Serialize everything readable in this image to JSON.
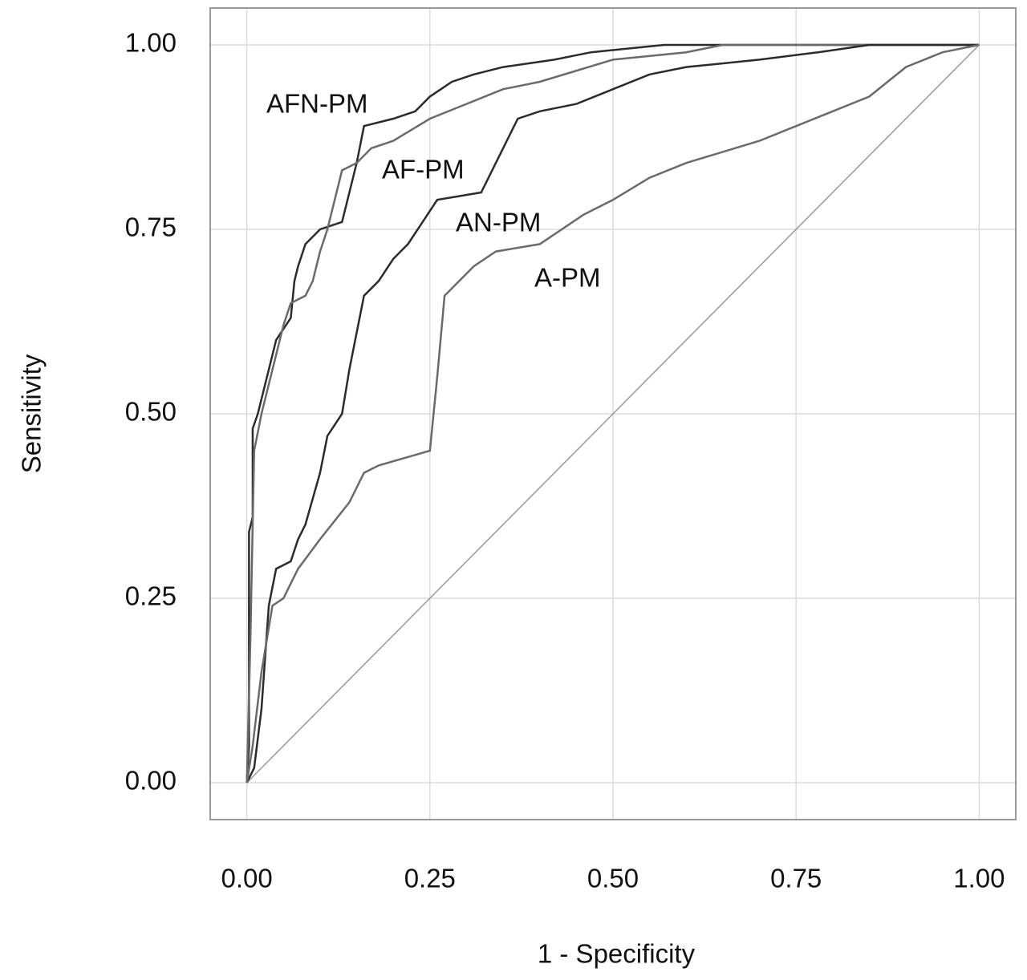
{
  "chart_data": {
    "type": "line",
    "x_label": "1 - Specificity",
    "y_label": "Sensitivity",
    "xlim": [
      -0.05,
      1.05
    ],
    "ylim": [
      -0.05,
      1.05
    ],
    "xticks": [
      {
        "value": 0,
        "label": "0.00"
      },
      {
        "value": 0.25,
        "label": "0.25"
      },
      {
        "value": 0.5,
        "label": "0.50"
      },
      {
        "value": 0.75,
        "label": "0.75"
      },
      {
        "value": 1,
        "label": "1.00"
      }
    ],
    "yticks": [
      {
        "value": 0,
        "label": "0.00"
      },
      {
        "value": 0.25,
        "label": "0.25"
      },
      {
        "value": 0.5,
        "label": "0.50"
      },
      {
        "value": 0.75,
        "label": "0.75"
      },
      {
        "value": 1,
        "label": "1.00"
      }
    ],
    "grid": true,
    "series": [
      {
        "name": "AFN-PM",
        "color": "#2b2b2b",
        "x": [
          0,
          0.003,
          0.003,
          0.008,
          0.008,
          0.015,
          0.02,
          0.03,
          0.035,
          0.04,
          0.06,
          0.065,
          0.07,
          0.08,
          0.09,
          0.1,
          0.13,
          0.14,
          0.15,
          0.16,
          0.2,
          0.23,
          0.25,
          0.28,
          0.31,
          0.35,
          0.42,
          0.47,
          0.57,
          1.0
        ],
        "values": [
          0,
          0.05,
          0.34,
          0.36,
          0.48,
          0.5,
          0.52,
          0.56,
          0.58,
          0.6,
          0.63,
          0.68,
          0.7,
          0.73,
          0.74,
          0.75,
          0.76,
          0.8,
          0.84,
          0.89,
          0.9,
          0.91,
          0.93,
          0.95,
          0.96,
          0.97,
          0.98,
          0.99,
          1.0,
          1.0
        ]
      },
      {
        "name": "AF-PM",
        "color": "#6a6a6a",
        "x": [
          0,
          0.005,
          0.01,
          0.02,
          0.03,
          0.04,
          0.05,
          0.06,
          0.08,
          0.09,
          0.1,
          0.11,
          0.13,
          0.15,
          0.17,
          0.2,
          0.25,
          0.3,
          0.35,
          0.4,
          0.5,
          0.6,
          0.65,
          1.0
        ],
        "values": [
          0,
          0.2,
          0.45,
          0.5,
          0.54,
          0.58,
          0.62,
          0.65,
          0.66,
          0.68,
          0.72,
          0.75,
          0.83,
          0.84,
          0.86,
          0.87,
          0.9,
          0.92,
          0.94,
          0.95,
          0.98,
          0.99,
          1.0,
          1.0
        ]
      },
      {
        "name": "AN-PM",
        "color": "#2b2b2b",
        "x": [
          0,
          0.01,
          0.02,
          0.03,
          0.04,
          0.06,
          0.07,
          0.08,
          0.1,
          0.11,
          0.13,
          0.14,
          0.15,
          0.16,
          0.18,
          0.2,
          0.22,
          0.24,
          0.26,
          0.32,
          0.35,
          0.37,
          0.4,
          0.45,
          0.5,
          0.55,
          0.6,
          0.7,
          0.78,
          0.85,
          1.0
        ],
        "values": [
          0,
          0.02,
          0.1,
          0.24,
          0.29,
          0.3,
          0.33,
          0.35,
          0.42,
          0.47,
          0.5,
          0.56,
          0.61,
          0.66,
          0.68,
          0.71,
          0.73,
          0.76,
          0.79,
          0.8,
          0.86,
          0.9,
          0.91,
          0.92,
          0.94,
          0.96,
          0.97,
          0.98,
          0.99,
          1.0,
          1.0
        ]
      },
      {
        "name": "A-PM",
        "color": "#6a6a6a",
        "x": [
          0,
          0.008,
          0.02,
          0.035,
          0.05,
          0.07,
          0.1,
          0.14,
          0.16,
          0.18,
          0.25,
          0.26,
          0.27,
          0.29,
          0.31,
          0.34,
          0.4,
          0.46,
          0.5,
          0.55,
          0.6,
          0.7,
          0.75,
          0.8,
          0.85,
          0.9,
          0.95,
          1.0
        ],
        "values": [
          0,
          0.05,
          0.15,
          0.24,
          0.25,
          0.29,
          0.33,
          0.38,
          0.42,
          0.43,
          0.45,
          0.55,
          0.66,
          0.68,
          0.7,
          0.72,
          0.73,
          0.77,
          0.79,
          0.82,
          0.84,
          0.87,
          0.89,
          0.91,
          0.93,
          0.97,
          0.99,
          1.0
        ]
      }
    ]
  }
}
